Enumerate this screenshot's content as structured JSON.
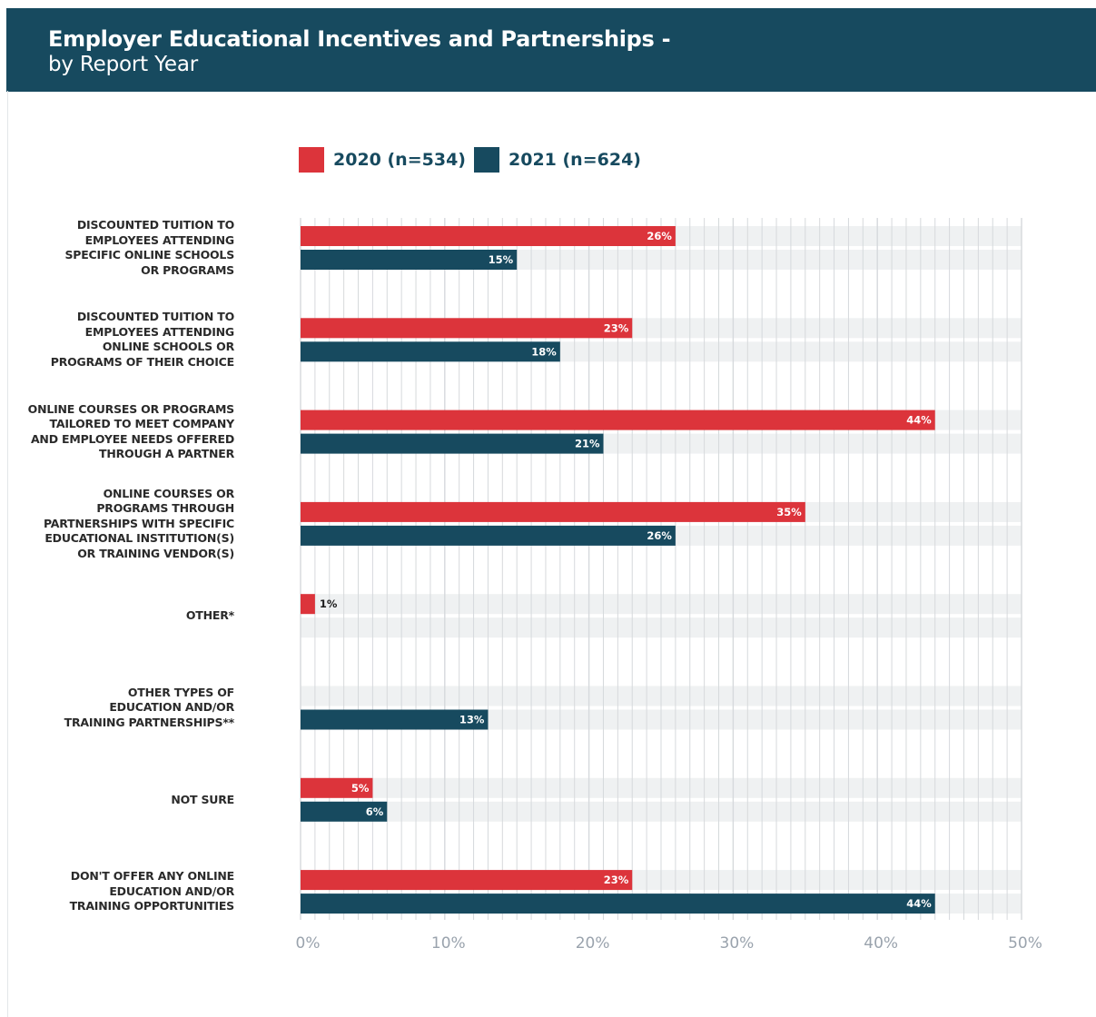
{
  "header": {
    "title": "Employer Educational Incentives and Partnerships -",
    "subtitle": "by Report Year"
  },
  "colors": {
    "header_bg": "#174a5f",
    "series_2020": "#dc343b",
    "series_2021": "#174a5f",
    "track": "#eff1f2",
    "grid": "#d6d9dc",
    "tick_text": "#9aa3ad"
  },
  "chart_data": {
    "type": "bar",
    "orientation": "horizontal",
    "categories": [
      "DISCOUNTED TUITION TO EMPLOYEES ATTENDING SPECIFIC ONLINE SCHOOLS OR PROGRAMS",
      "DISCOUNTED TUITION TO EMPLOYEES ATTENDING ONLINE SCHOOLS OR PROGRAMS OF THEIR CHOICE",
      "ONLINE COURSES OR PROGRAMS TAILORED TO MEET COMPANY AND EMPLOYEE NEEDS OFFERED THROUGH A PARTNER",
      "ONLINE COURSES OR PROGRAMS THROUGH PARTNERSHIPS WITH SPECIFIC EDUCATIONAL INSTITUTION(S) OR TRAINING VENDOR(S)",
      "OTHER*",
      "OTHER TYPES OF EDUCATION AND/OR TRAINING PARTNERSHIPS**",
      "NOT SURE",
      "DON'T OFFER ANY ONLINE EDUCATION AND/OR TRAINING OPPORTUNITIES"
    ],
    "category_lines": [
      [
        "DISCOUNTED TUITION TO",
        "EMPLOYEES ATTENDING",
        "SPECIFIC ONLINE SCHOOLS",
        "OR PROGRAMS"
      ],
      [
        "DISCOUNTED TUITION TO",
        "EMPLOYEES ATTENDING",
        "ONLINE SCHOOLS OR",
        "PROGRAMS OF THEIR CHOICE"
      ],
      [
        "ONLINE COURSES OR PROGRAMS",
        "TAILORED TO MEET COMPANY",
        "AND EMPLOYEE NEEDS OFFERED",
        "THROUGH A PARTNER"
      ],
      [
        "ONLINE COURSES OR",
        "PROGRAMS THROUGH",
        "PARTNERSHIPS WITH SPECIFIC",
        "EDUCATIONAL INSTITUTION(S)",
        "OR TRAINING VENDOR(S)"
      ],
      [
        "OTHER*"
      ],
      [
        "OTHER TYPES OF",
        "EDUCATION AND/OR",
        "TRAINING PARTNERSHIPS**"
      ],
      [
        "NOT SURE"
      ],
      [
        "DON'T OFFER ANY ONLINE",
        "EDUCATION AND/OR",
        "TRAINING OPPORTUNITIES"
      ]
    ],
    "series": [
      {
        "name": "2020 (n=534)",
        "color": "#dc343b",
        "values": [
          26,
          23,
          44,
          35,
          1,
          null,
          5,
          23
        ],
        "labels": [
          "26%",
          "23%",
          "44%",
          "35%",
          "1%",
          "",
          "5%",
          "23%"
        ]
      },
      {
        "name": "2021 (n=624)",
        "color": "#174a5f",
        "values": [
          15,
          18,
          21,
          26,
          null,
          13,
          6,
          44
        ],
        "labels": [
          "15%",
          "18%",
          "21%",
          "26%",
          "",
          "13%",
          "6%",
          "44%"
        ]
      }
    ],
    "xlim": [
      0,
      50
    ],
    "x_ticks": [
      0,
      10,
      20,
      30,
      40,
      50
    ],
    "x_tick_labels": [
      "0%",
      "10%",
      "20%",
      "30%",
      "40%",
      "50%"
    ],
    "minor_grid_step": 1,
    "grid": true,
    "legend_position": "top"
  }
}
